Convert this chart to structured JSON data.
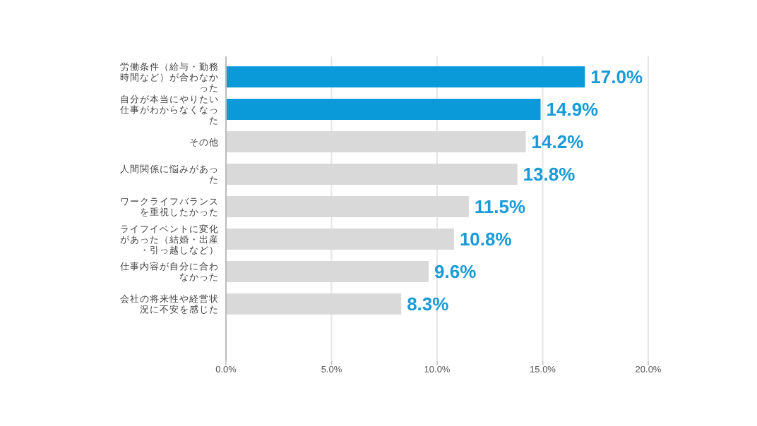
{
  "chart_data": {
    "type": "bar",
    "orientation": "horizontal",
    "categories": [
      "労働条件（給与・勤務時間など）が合わなかった",
      "自分が本当にやりたい仕事がわからなくなった",
      "その他",
      "人間関係に悩みがあった",
      "ワークライフバランスを重視したかった",
      "ライフイベントに変化があった（結婚・出産・引っ越しなど）",
      "仕事内容が自分に合わなかった",
      "会社の将来性や経営状況に不安を感じた"
    ],
    "values": [
      17.0,
      14.9,
      14.2,
      13.8,
      11.5,
      10.8,
      9.6,
      8.3
    ],
    "colors": [
      "#0a9ad9",
      "#0a9ad9",
      "#d9d9d9",
      "#d9d9d9",
      "#d9d9d9",
      "#d9d9d9",
      "#d9d9d9",
      "#d9d9d9"
    ],
    "value_labels": [
      "17.0%",
      "14.9%",
      "14.2%",
      "13.8%",
      "11.5%",
      "10.8%",
      "9.6%",
      "8.3%"
    ],
    "xlim": [
      0,
      20
    ],
    "xticks": [
      {
        "value": 0,
        "label": "0.0%"
      },
      {
        "value": 5,
        "label": "5.0%"
      },
      {
        "value": 10,
        "label": "10.0%"
      },
      {
        "value": 15,
        "label": "15.0%"
      },
      {
        "value": 20,
        "label": "20.0%"
      }
    ],
    "grid": "x"
  }
}
